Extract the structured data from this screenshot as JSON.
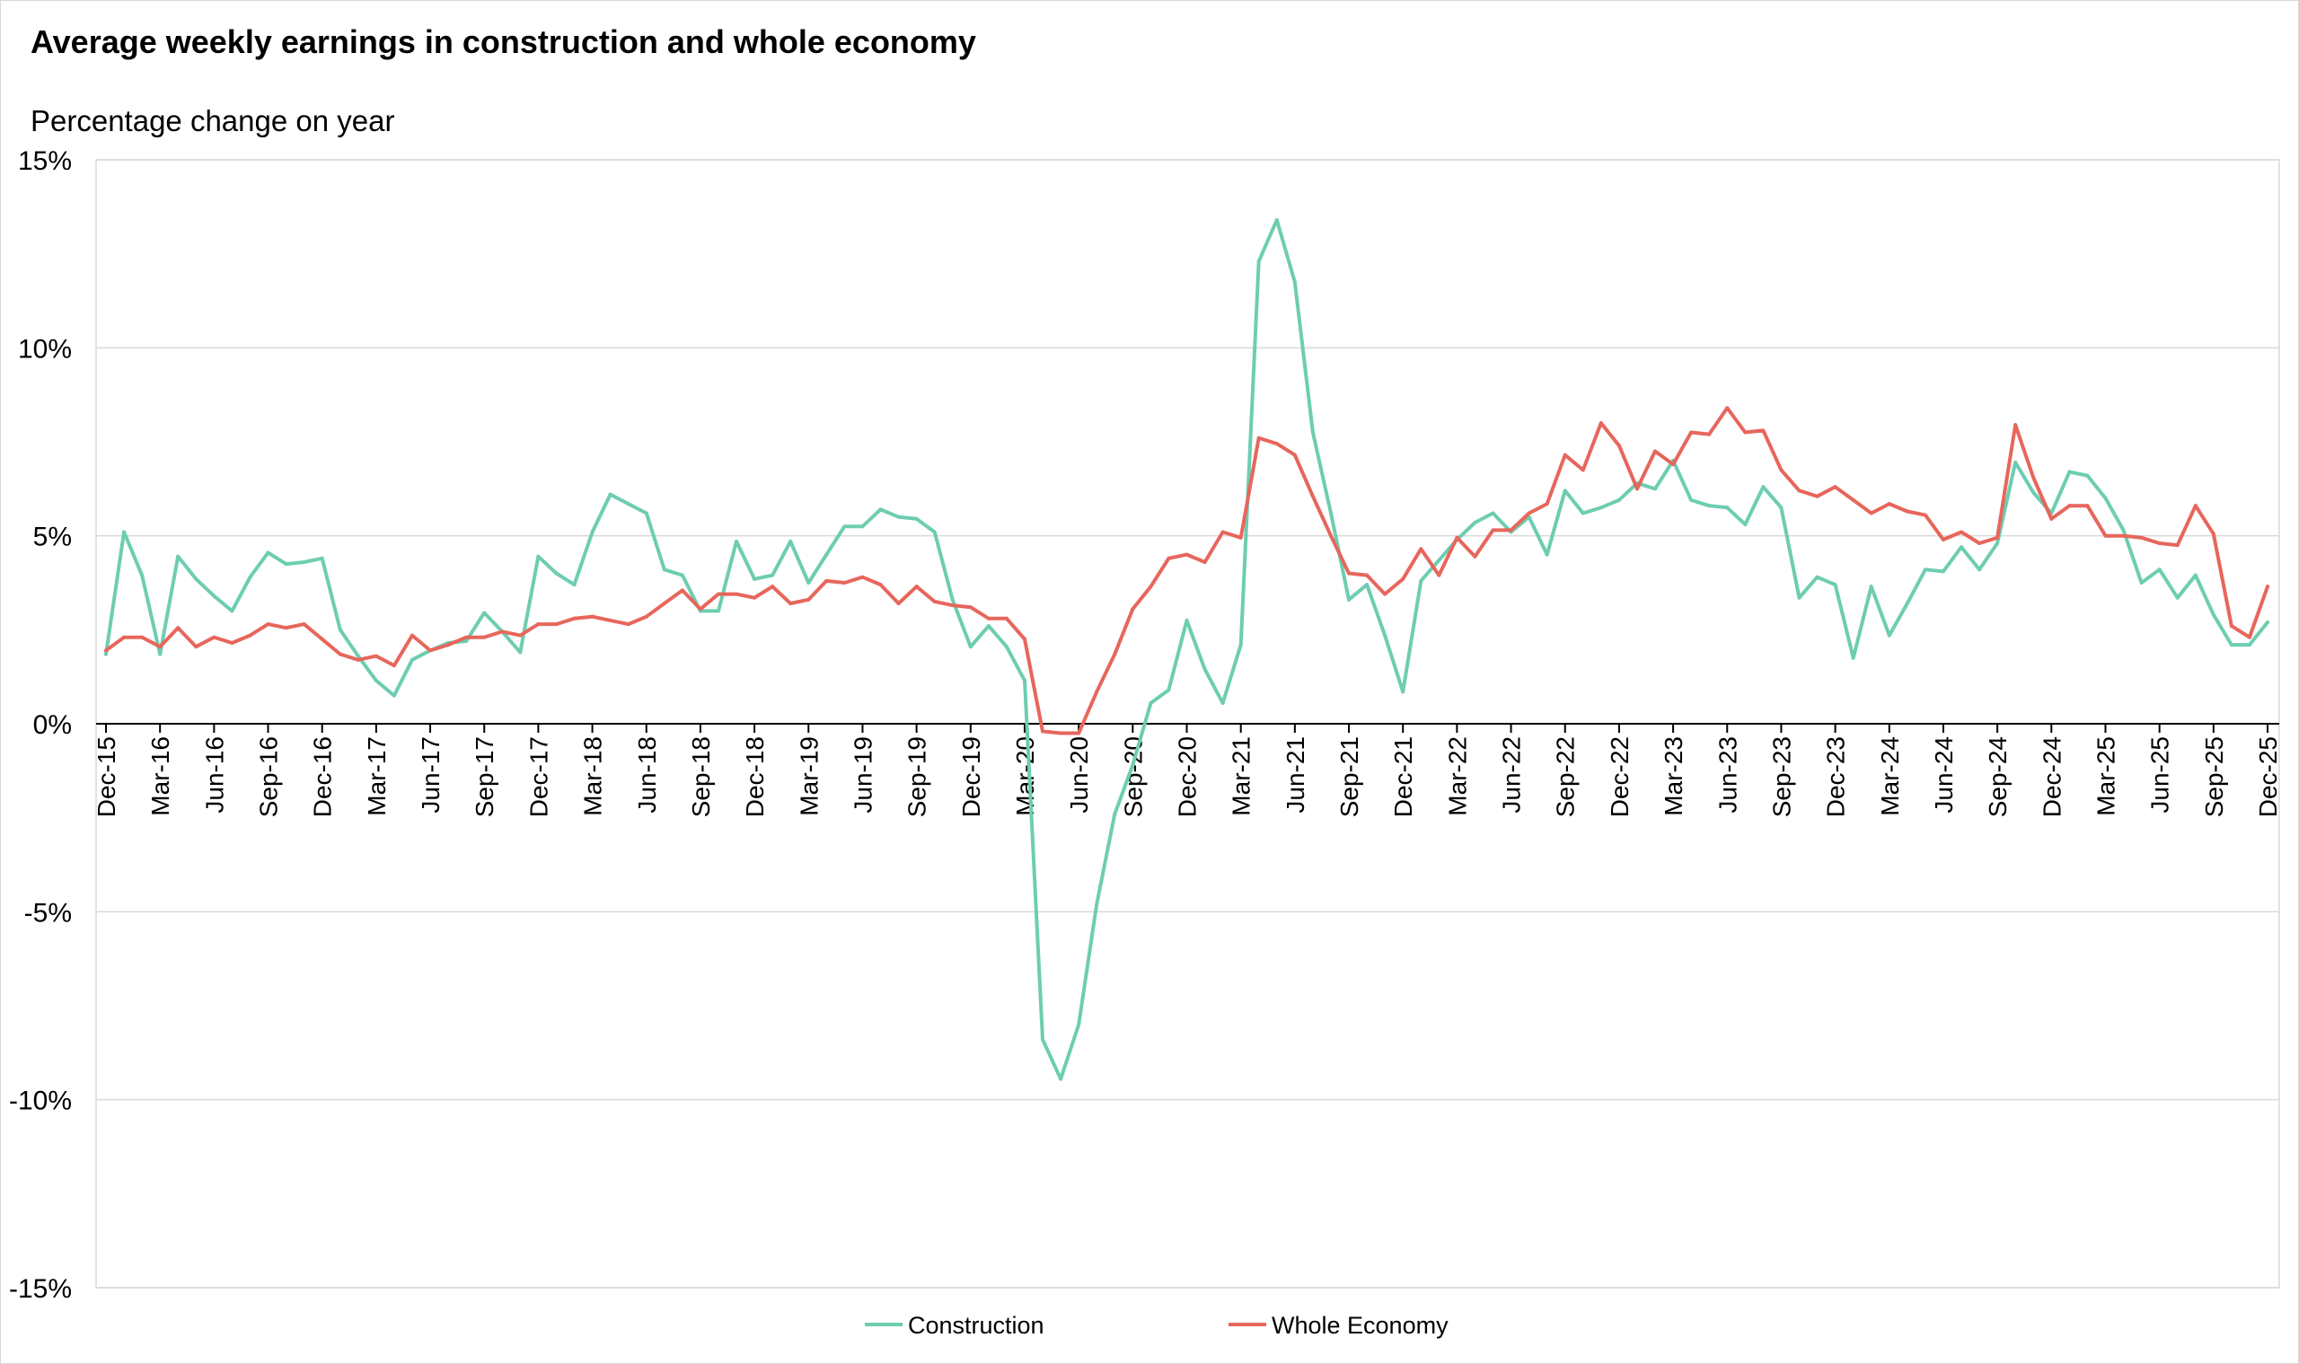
{
  "chart_data": {
    "type": "line",
    "title": "Average weekly earnings in construction and whole economy",
    "ylabel": "Percentage change on year",
    "xlabel": "",
    "ylim": [
      -15,
      15
    ],
    "yticks": [
      15,
      10,
      5,
      0,
      -5,
      -10,
      -15
    ],
    "ytick_labels": [
      "15%",
      "10%",
      "5%",
      "0%",
      "-5%",
      "-10%",
      "-15%"
    ],
    "x_start": "Dec-15",
    "x_tick_labels": [
      "Dec-15",
      "Mar-16",
      "Jun-16",
      "Sep-16",
      "Dec-16",
      "Mar-17",
      "Jun-17",
      "Sep-17",
      "Dec-17",
      "Mar-18",
      "Jun-18",
      "Sep-18",
      "Dec-18",
      "Mar-19",
      "Jun-19",
      "Sep-19",
      "Dec-19",
      "Mar-20",
      "Jun-20",
      "Sep-20",
      "Dec-20",
      "Mar-21",
      "Jun-21",
      "Sep-21",
      "Dec-21",
      "Mar-22",
      "Jun-22",
      "Sep-22",
      "Dec-22",
      "Mar-23",
      "Jun-23",
      "Sep-23",
      "Dec-23",
      "Mar-24",
      "Jun-24",
      "Sep-24",
      "Dec-24",
      "Mar-25",
      "Jun-25",
      "Sep-25",
      "Dec-25"
    ],
    "legend_position": "bottom-center",
    "grid": true,
    "series": [
      {
        "name": "Construction",
        "color": "#6dcdb1",
        "values": [
          1.85,
          5.1,
          3.95,
          1.85,
          4.45,
          3.85,
          3.4,
          3.0,
          3.9,
          4.55,
          4.25,
          4.3,
          4.4,
          2.5,
          1.8,
          1.15,
          0.75,
          1.7,
          1.95,
          2.15,
          2.2,
          2.95,
          2.45,
          1.9,
          4.45,
          4.0,
          3.7,
          5.1,
          6.1,
          5.85,
          5.6,
          4.1,
          3.95,
          3.0,
          3.0,
          4.85,
          3.85,
          3.95,
          4.85,
          3.75,
          4.5,
          5.25,
          5.25,
          5.7,
          5.5,
          5.45,
          5.1,
          3.3,
          2.05,
          2.6,
          2.05,
          1.15,
          -8.4,
          -9.45,
          -8.0,
          -4.8,
          -2.4,
          -1.1,
          0.55,
          0.9,
          2.75,
          1.45,
          0.55,
          2.1,
          12.3,
          13.4,
          11.75,
          7.75,
          5.6,
          3.3,
          3.7,
          2.35,
          0.85,
          3.8,
          4.35,
          4.9,
          5.35,
          5.6,
          5.1,
          5.5,
          4.5,
          6.2,
          5.6,
          5.75,
          5.95,
          6.4,
          6.25,
          7.0,
          5.95,
          5.8,
          5.75,
          5.3,
          6.3,
          5.75,
          3.35,
          3.9,
          3.7,
          1.75,
          3.65,
          2.35,
          3.2,
          4.1,
          4.05,
          4.7,
          4.1,
          4.8,
          6.95,
          6.15,
          5.6,
          6.7,
          6.6,
          6.0,
          5.15,
          3.75,
          4.1,
          3.35,
          3.95,
          2.9,
          2.1,
          2.1,
          2.7
        ]
      },
      {
        "name": "Whole Economy",
        "color": "#e7665c",
        "values": [
          1.95,
          2.3,
          2.3,
          2.05,
          2.55,
          2.05,
          2.3,
          2.15,
          2.35,
          2.65,
          2.55,
          2.65,
          2.25,
          1.85,
          1.7,
          1.8,
          1.55,
          2.35,
          1.95,
          2.1,
          2.3,
          2.3,
          2.45,
          2.35,
          2.65,
          2.65,
          2.8,
          2.85,
          2.75,
          2.65,
          2.85,
          3.2,
          3.55,
          3.05,
          3.45,
          3.45,
          3.35,
          3.65,
          3.2,
          3.3,
          3.8,
          3.75,
          3.9,
          3.7,
          3.2,
          3.65,
          3.25,
          3.15,
          3.1,
          2.8,
          2.8,
          2.25,
          -0.2,
          -0.25,
          -0.25,
          0.85,
          1.85,
          3.05,
          3.65,
          4.4,
          4.5,
          4.3,
          5.1,
          4.95,
          7.6,
          7.45,
          7.15,
          6.05,
          5.0,
          4.0,
          3.95,
          3.45,
          3.85,
          4.65,
          3.95,
          4.95,
          4.45,
          5.15,
          5.15,
          5.6,
          5.85,
          7.15,
          6.75,
          8.0,
          7.4,
          6.25,
          7.25,
          6.9,
          7.75,
          7.7,
          8.4,
          7.75,
          7.8,
          6.75,
          6.2,
          6.05,
          6.3,
          5.95,
          5.6,
          5.85,
          5.65,
          5.55,
          4.9,
          5.1,
          4.8,
          4.95,
          7.95,
          6.55,
          5.45,
          5.8,
          5.8,
          5.0,
          5.0,
          4.95,
          4.8,
          4.75,
          5.8,
          5.05,
          2.6,
          2.3,
          3.65
        ]
      }
    ]
  }
}
